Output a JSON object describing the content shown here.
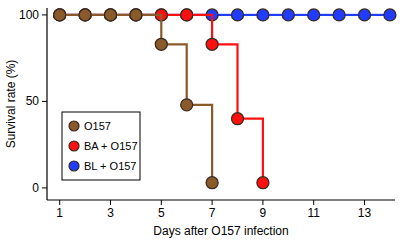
{
  "chart_data": {
    "type": "line",
    "line_style": "step",
    "marker": "circle",
    "x_label": "Days after O157 infection",
    "y_label": "Survival rate (%)",
    "xlim": [
      0.5,
      14.2
    ],
    "xticks": [
      1,
      3,
      5,
      7,
      9,
      11,
      13
    ],
    "ylim": [
      -7,
      104
    ],
    "yticks": [
      0,
      50,
      100
    ],
    "legend": "lower left",
    "grid": false,
    "series": [
      {
        "name": "BL + O157",
        "color": "#1f3cff",
        "x": [
          1,
          2,
          3,
          4,
          5,
          6,
          7,
          8,
          9,
          10,
          11,
          12,
          13,
          14
        ],
        "values": [
          100,
          100,
          100,
          100,
          100,
          100,
          100,
          100,
          100,
          100,
          100,
          100,
          100,
          100
        ]
      },
      {
        "name": "BA + O157",
        "color": "#ff1010",
        "x": [
          1,
          2,
          3,
          4,
          5,
          6,
          7,
          8,
          9
        ],
        "values": [
          100,
          100,
          100,
          100,
          100,
          100,
          83,
          40,
          3
        ]
      },
      {
        "name": "O157",
        "color": "#8b5a2b",
        "x": [
          1,
          2,
          3,
          4,
          5,
          6,
          7
        ],
        "values": [
          100,
          100,
          100,
          100,
          83,
          48,
          3
        ]
      }
    ]
  }
}
